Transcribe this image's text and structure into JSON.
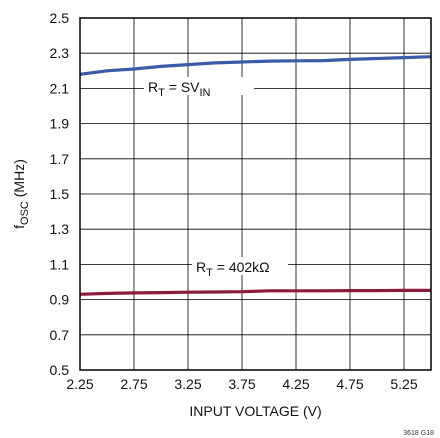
{
  "chart_data": {
    "type": "line",
    "xlabel": "INPUT VOLTAGE (V)",
    "ylabel": {
      "main": "f",
      "sub": "OSC",
      "unit": " (MHz)"
    },
    "xlim": [
      2.25,
      5.5
    ],
    "ylim": [
      0.5,
      2.5
    ],
    "x_ticks": [
      "2.25",
      "2.75",
      "3.25",
      "3.75",
      "4.25",
      "4.75",
      "5.25"
    ],
    "y_ticks": [
      "0.5",
      "0.7",
      "0.9",
      "1.1",
      "1.3",
      "1.5",
      "1.7",
      "1.9",
      "2.1",
      "2.3",
      "2.5"
    ],
    "grid": true,
    "series": [
      {
        "label": {
          "main": "R",
          "sub": "T",
          "rest": " = SV",
          "sub2": "IN"
        },
        "color": "#3a5ba7",
        "x": [
          2.25,
          2.5,
          2.75,
          3.0,
          3.25,
          3.5,
          3.75,
          4.0,
          4.25,
          4.5,
          4.75,
          5.0,
          5.25,
          5.5
        ],
        "y": [
          2.18,
          2.2,
          2.21,
          2.225,
          2.235,
          2.245,
          2.25,
          2.255,
          2.257,
          2.258,
          2.265,
          2.27,
          2.275,
          2.28
        ]
      },
      {
        "label": {
          "main": "R",
          "sub": "T",
          "rest": " = 402kΩ",
          "sub2": ""
        },
        "color": "#8c1c3c",
        "x": [
          2.25,
          2.5,
          2.75,
          3.0,
          3.25,
          3.5,
          3.75,
          4.0,
          4.25,
          4.5,
          4.75,
          5.0,
          5.25,
          5.5
        ],
        "y": [
          0.93,
          0.935,
          0.938,
          0.94,
          0.942,
          0.943,
          0.945,
          0.95,
          0.95,
          0.95,
          0.951,
          0.951,
          0.952,
          0.952
        ]
      }
    ],
    "figure_id": "3618 G18"
  }
}
